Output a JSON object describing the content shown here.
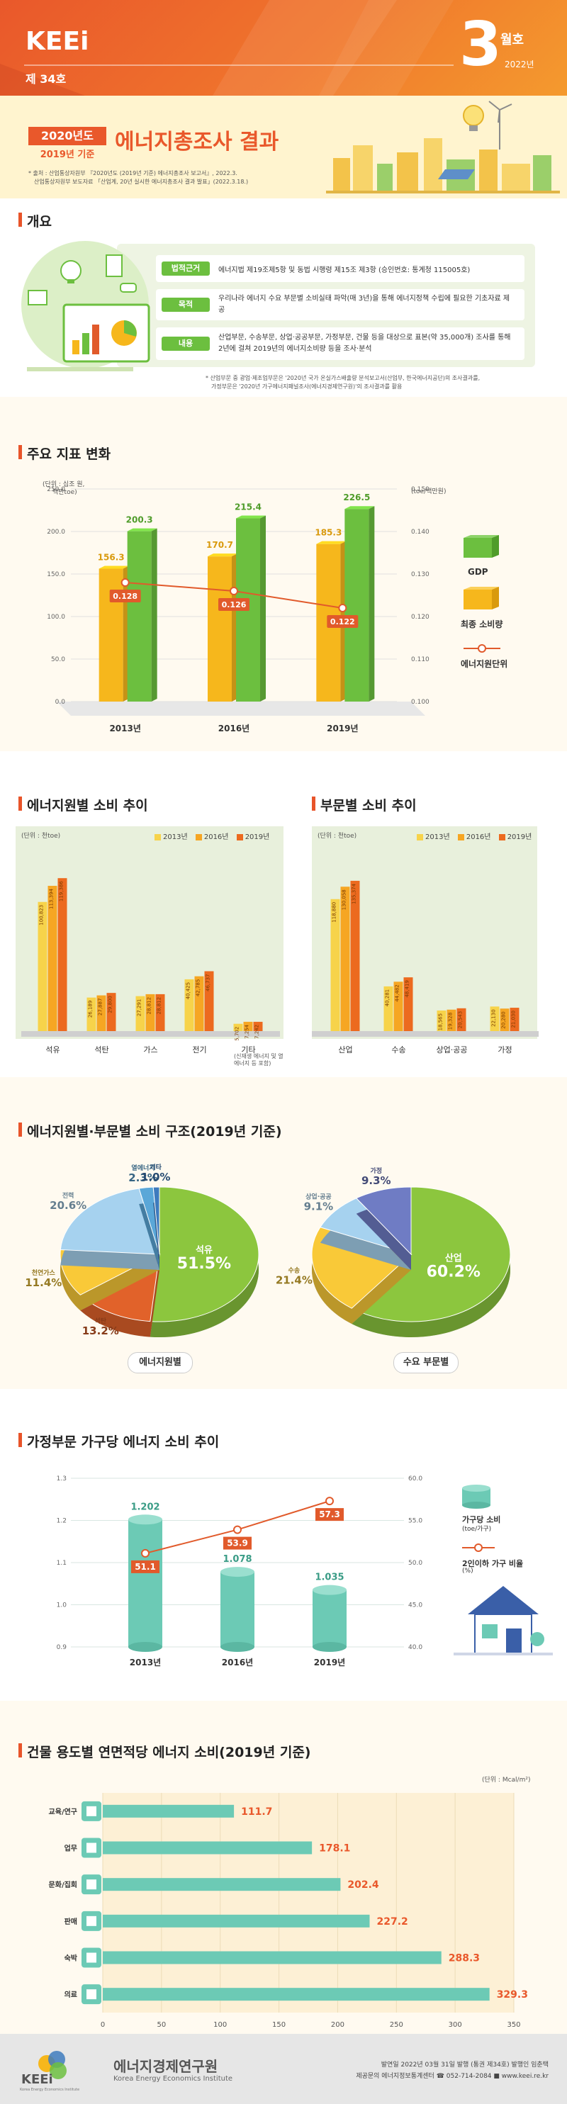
{
  "header": {
    "brand": "KEEi",
    "issue": "제 34호",
    "month_num": "3",
    "month_word": "월호",
    "year": "2022년",
    "tag_year": "2020년도",
    "tag_basis": "2019년 기준",
    "title": "에너지총조사 결과",
    "source_lines": [
      "* 출처 : 산업통상자원부 『2020년도 (2019년 기준) 에너지총조사 보고서』, 2022.3.",
      "산업통상자원부 보도자료 「산업계, 20년 실시한 에너지총조사 결과 발표」(2022.3.18.)"
    ]
  },
  "overview": {
    "title": "개요",
    "rows": [
      {
        "tag": "법적근거",
        "text": "에너지법 제19조제5항 및 동법 시행령 제15조 제3항 (승인번호: 통계청 115005호)"
      },
      {
        "tag": "목적",
        "text": "우리나라 에너지 수요 부문별 소비실태 파악(매 3년)을 통해 에너지정책 수립에 필요한 기초자료 제공"
      },
      {
        "tag": "내용",
        "text": "산업부문, 수송부문, 상업·공공부문, 가정부문, 건물 등을 대상으로 표본(약 35,000개) 조사를 통해 2년에 걸쳐 2019년의 에너지소비량 등을 조사·분석"
      }
    ],
    "notes": [
      "* 산업부문 중 광업·제조업부문은 '2020년 국가 온실가스배출량 분석보고서(산업부, 한국에너지공단)의 조사결과를,",
      "가정부문은 '2020년 가구에너지패널조사(에너지경제연구원)'의 조사결과를 활용"
    ],
    "icon_names": [
      "monitor-chart-icon",
      "lightbulb-icon",
      "building-icon",
      "factory-icon",
      "car-icon"
    ]
  },
  "main_indicators": {
    "title": "주요 지표 변화",
    "left_unit": "(단위 : 십조 원,",
    "left_unit2": "백만toe)",
    "right_unit": "(toe/백만원)",
    "legend": [
      "GDP",
      "최종 소비량",
      "에너지원단위"
    ],
    "colors": {
      "gdp": "#6cbf3f",
      "final": "#f6b71c",
      "intensity": "#e15a2b"
    },
    "chart_data": {
      "type": "bar",
      "categories": [
        "2013년",
        "2016년",
        "2019년"
      ],
      "series": [
        {
          "name": "최종 소비량",
          "values": [
            156.3,
            170.7,
            185.3
          ]
        },
        {
          "name": "GDP",
          "values": [
            200.3,
            215.4,
            226.5
          ]
        }
      ],
      "line_series": {
        "name": "에너지원단위",
        "values": [
          0.128,
          0.126,
          0.122
        ]
      },
      "ylim": [
        0,
        250
      ],
      "yticks": [
        "0.0",
        "50.0",
        "100.0",
        "150.0",
        "200.0",
        "250.0"
      ],
      "y2lim": [
        0.1,
        0.15
      ],
      "y2ticks": [
        "0.100",
        "0.110",
        "0.120",
        "0.130",
        "0.140",
        "0.150"
      ]
    }
  },
  "energy_source": {
    "title": "에너지원별 소비 추이",
    "unit": "(단위 : 천toe)",
    "legend": [
      "2013년",
      "2016년",
      "2019년"
    ],
    "colors": [
      "#f7d34a",
      "#f6a623",
      "#ec6a1f"
    ],
    "chart_data": {
      "type": "bar",
      "categories": [
        "석유",
        "석탄",
        "가스",
        "전기",
        "기타"
      ],
      "series": [
        {
          "name": "2013년",
          "values": [
            100823,
            26189,
            27291,
            40425,
            5702
          ]
        },
        {
          "name": "2016년",
          "values": [
            113394,
            27887,
            28812,
            42785,
            7254
          ]
        },
        {
          "name": "2019년",
          "values": [
            119386,
            29800,
            28812,
            46737,
            7242
          ]
        }
      ],
      "labels": [
        [
          "100,823",
          "113,394",
          "119,386"
        ],
        [
          "26,189",
          "27,887",
          "29,800"
        ],
        [
          "27,291",
          "28,812",
          "28,812"
        ],
        [
          "40,425",
          "42,785",
          "46,737"
        ],
        [
          "5,702",
          "7,254",
          "7,242"
        ]
      ],
      "ylim": [
        0,
        130000
      ]
    },
    "other_note": "(신재생 에너지 및 열에너지 등 포함)"
  },
  "sector": {
    "title": "부문별 소비 추이",
    "unit": "(단위 : 천toe)",
    "legend": [
      "2013년",
      "2016년",
      "2019년"
    ],
    "chart_data": {
      "type": "bar",
      "categories": [
        "산업",
        "수송",
        "상업·공공",
        "가정"
      ],
      "series": [
        {
          "name": "2013년",
          "values": [
            118880,
            40281,
            18565,
            22130
          ]
        },
        {
          "name": "2016년",
          "values": [
            130058,
            44482,
            19328,
            20280
          ]
        },
        {
          "name": "2019년",
          "values": [
            135374,
            48419,
            20543,
            21030
          ]
        }
      ],
      "labels": [
        [
          "118,880",
          "130,058",
          "135,374"
        ],
        [
          "40,281",
          "44,482",
          "48,419"
        ],
        [
          "18,565",
          "19,328",
          "20,543"
        ],
        [
          "22,130",
          "20,280",
          "21,030"
        ]
      ],
      "ylim": [
        0,
        150000
      ]
    }
  },
  "structure": {
    "title": "에너지원별·부문별 소비 구조(2019년 기준)",
    "pie1_caption": "에너지원별",
    "pie2_caption": "수요 부문별",
    "chart_data": [
      {
        "type": "pie",
        "slices": [
          {
            "label": "석유",
            "value": 51.5,
            "text": "51.5%",
            "color": "#8cc63e"
          },
          {
            "label": "석탄",
            "value": 13.2,
            "text": "13.2%",
            "color": "#e1622a"
          },
          {
            "label": "천연가스",
            "value": 11.4,
            "text": "11.4%",
            "color": "#f9c938"
          },
          {
            "label": "전력",
            "value": 20.6,
            "text": "20.6%",
            "color": "#a6d2ef"
          },
          {
            "label": "열에너지",
            "value": 2.3,
            "text": "2.3%",
            "color": "#5aa7d8"
          },
          {
            "label": "기타",
            "value": 1.0,
            "text": "1.0%",
            "color": "#3e7bbd"
          }
        ]
      },
      {
        "type": "pie",
        "slices": [
          {
            "label": "산업",
            "value": 60.2,
            "text": "60.2%",
            "color": "#8cc63e"
          },
          {
            "label": "수송",
            "value": 21.4,
            "text": "21.4%",
            "color": "#f9c938"
          },
          {
            "label": "상업·공공",
            "value": 9.1,
            "text": "9.1%",
            "color": "#a6d2ef"
          },
          {
            "label": "가정",
            "value": 9.3,
            "text": "9.3%",
            "color": "#6f7cc4"
          }
        ]
      }
    ]
  },
  "household": {
    "title": "가정부문 가구당 에너지 소비 추이",
    "legend": [
      "가구당 소비",
      "(toe/가구)",
      "2인이하 가구 비율",
      "(%)"
    ],
    "chart_data": {
      "type": "bar",
      "categories": [
        "2013년",
        "2016년",
        "2019년"
      ],
      "series": [
        {
          "name": "가구당 소비",
          "values": [
            1.202,
            1.078,
            1.035
          ]
        }
      ],
      "line_series": {
        "name": "2인이하 가구 비율",
        "values": [
          51.1,
          53.9,
          57.3
        ]
      },
      "ylim": [
        0.9,
        1.3
      ],
      "yticks": [
        "0.9",
        "1.0",
        "1.1",
        "1.2",
        "1.3"
      ],
      "y2lim": [
        40,
        60
      ],
      "y2ticks": [
        "40.0",
        "45.0",
        "50.0",
        "55.0",
        "60.0"
      ]
    }
  },
  "building": {
    "title": "건물 용도별 연면적당 에너지 소비(2019년 기준)",
    "unit": "(단위 : Mcal/m²)",
    "chart_data": {
      "type": "bar",
      "categories": [
        "교육/연구",
        "업무",
        "문화/집회",
        "판매",
        "숙박",
        "의료"
      ],
      "values": [
        111.7,
        178.1,
        202.4,
        227.2,
        288.3,
        329.3
      ],
      "labels": [
        "111.7",
        "178.1",
        "202.4",
        "227.2",
        "288.3",
        "329.3"
      ],
      "xlim": [
        0,
        350
      ],
      "xticks": [
        "0",
        "50",
        "100",
        "150",
        "200",
        "250",
        "300",
        "350"
      ]
    }
  },
  "footer": {
    "logo": "KEEi",
    "logo_sub": "Korea Energy Economics Institute",
    "org_kr": "에너지경제연구원",
    "org_en": "Korea Energy Economics Institute",
    "line1": "발연일 2022년 03월 31일 발행 (통권 제34호) 발행인 임춘택",
    "line2": "제공문의 에너지정보통계센터 ☎ 052-714-2084 ■ www.keei.re.kr"
  }
}
